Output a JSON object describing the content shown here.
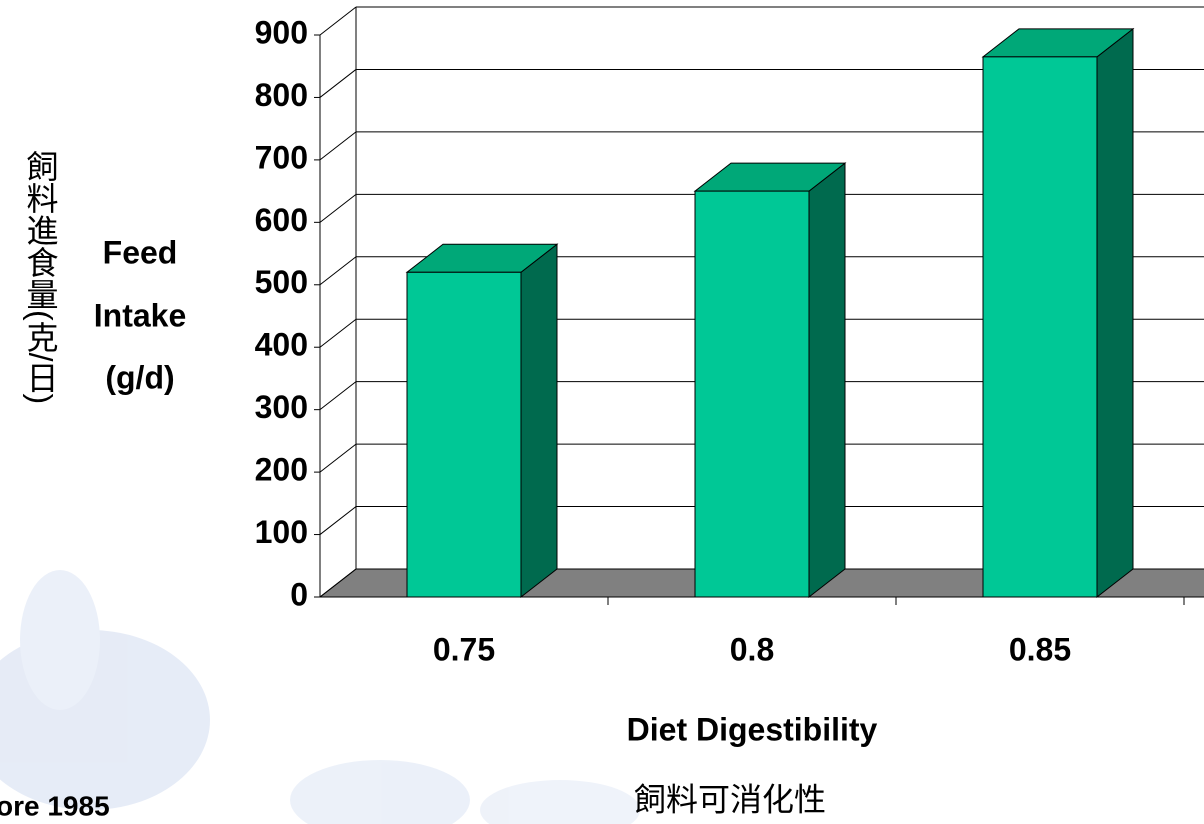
{
  "chart_data": {
    "type": "bar3d",
    "y_title_lines": [
      "Feed",
      "Intake",
      "(g/d)"
    ],
    "y_title_zh": "飼料進食量(克/日)",
    "x_title": "Diet Digestibility",
    "x_title_zh": "飼料可消化性",
    "source": "ore 1985",
    "categories": [
      "0.75",
      "0.8",
      "0.85"
    ],
    "values": [
      520,
      650,
      865
    ],
    "color": "#00c896",
    "side_color": "#006a4e",
    "top_color": "#00a878",
    "floor_color": "#808080",
    "ylim": [
      0,
      900
    ],
    "yticks": [
      0,
      100,
      200,
      300,
      400,
      500,
      600,
      700,
      800,
      900
    ],
    "grid": true
  }
}
